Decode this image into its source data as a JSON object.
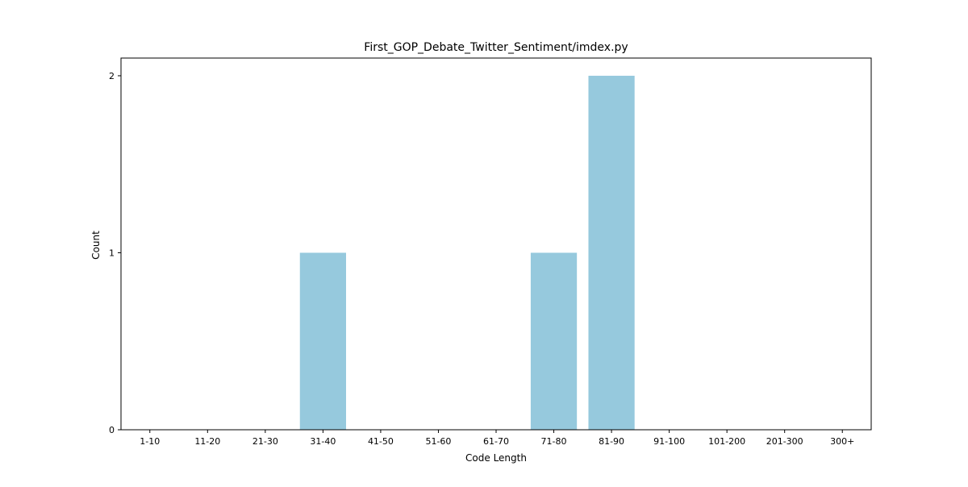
{
  "chart_data": {
    "type": "bar",
    "title": "First_GOP_Debate_Twitter_Sentiment/imdex.py",
    "xlabel": "Code Length",
    "ylabel": "Count",
    "categories": [
      "1-10",
      "11-20",
      "21-30",
      "31-40",
      "41-50",
      "51-60",
      "61-70",
      "71-80",
      "81-90",
      "91-100",
      "101-200",
      "201-300",
      "300+"
    ],
    "values": [
      0,
      0,
      0,
      1,
      0,
      0,
      0,
      1,
      2,
      0,
      0,
      0,
      0
    ],
    "ylim": [
      0,
      2.1
    ],
    "yticks": [
      0,
      1,
      2
    ],
    "grid": false,
    "bar_color": "#96c9dd"
  }
}
